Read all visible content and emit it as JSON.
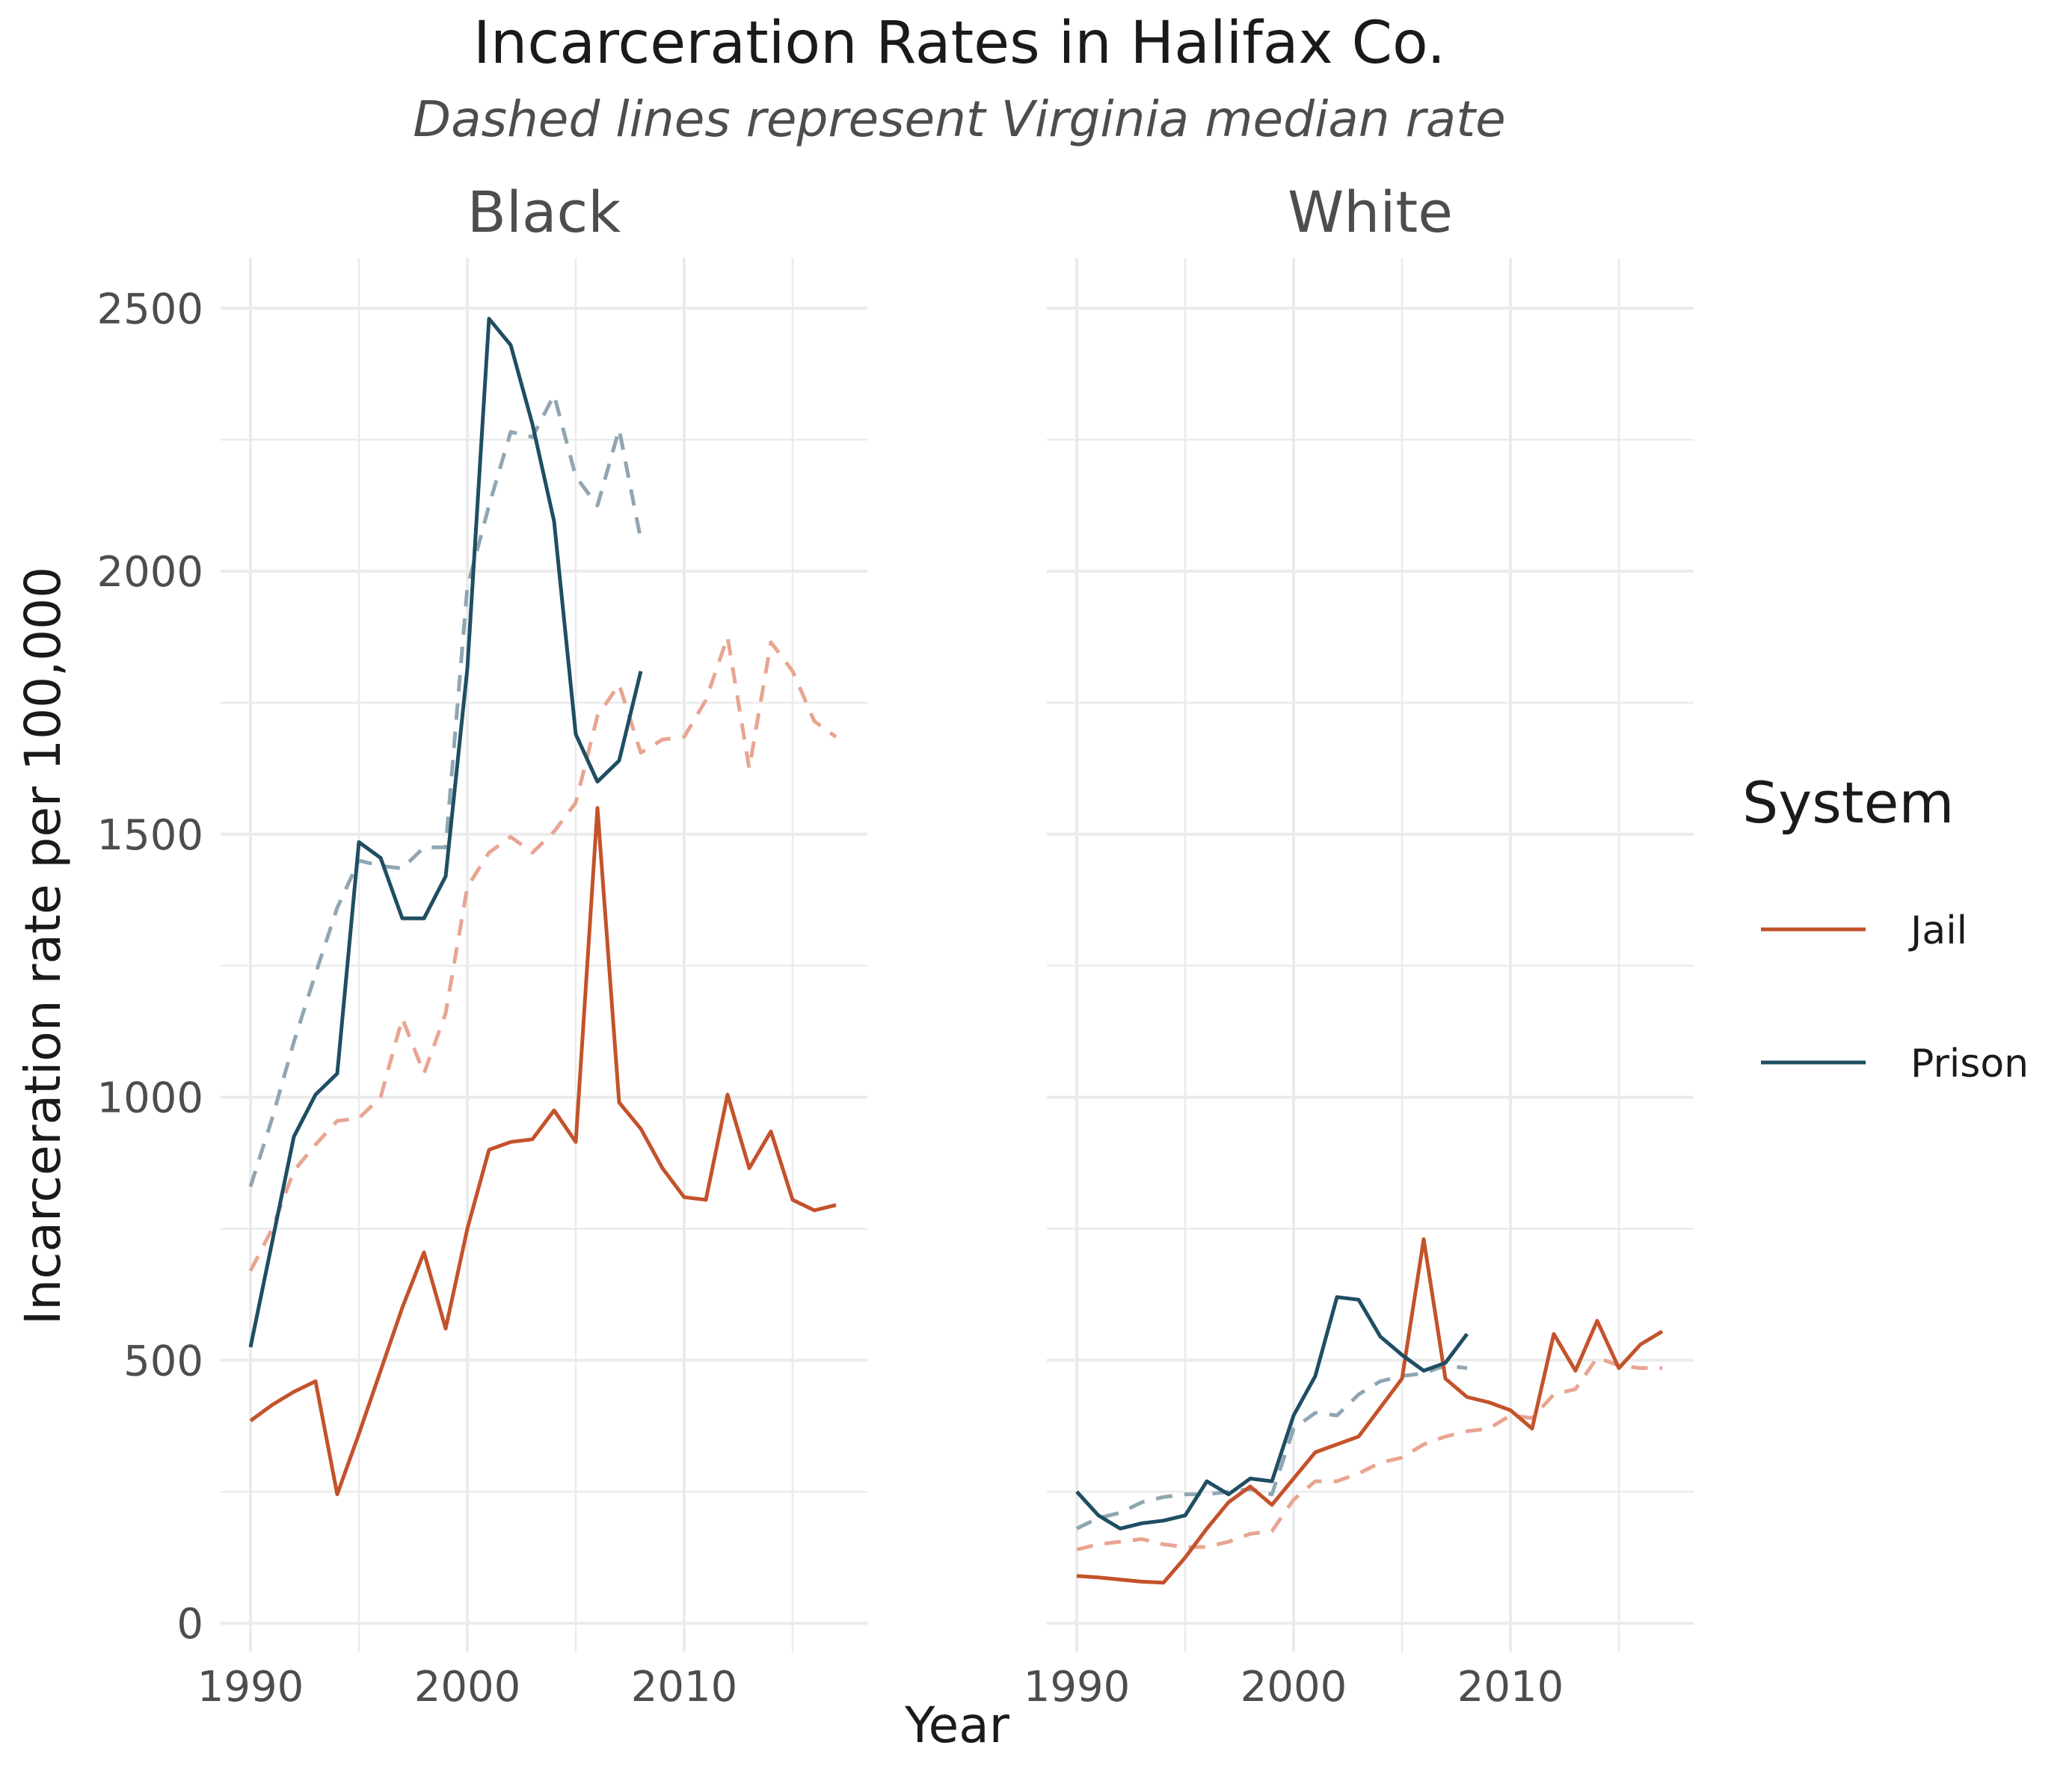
{
  "chart_data": {
    "type": "line",
    "title": "Incarceration Rates in Halifax Co.",
    "subtitle": "Dashed lines represent Virginia median rate",
    "xlabel": "Year",
    "ylabel": "Incarceration rate per 100,000",
    "xlim": [
      1990,
      2017
    ],
    "ylim": [
      0,
      2600
    ],
    "x_ticks": [
      "1990",
      "2000",
      "2010"
    ],
    "y_ticks": [
      "0",
      "500",
      "1000",
      "1500",
      "2000",
      "2500"
    ],
    "grid": true,
    "legend": {
      "title": "System",
      "position": "right",
      "entries": [
        {
          "label": "Jail",
          "color": "#c4522b"
        },
        {
          "label": "Prison",
          "color": "#1f4e63"
        }
      ]
    },
    "colors": {
      "jail": "#c4522b",
      "prison": "#1f4e63",
      "jail_median": "#e8a591",
      "prison_median": "#8fa6b2"
    },
    "facets": [
      {
        "label": "Black",
        "series": [
          {
            "system": "Jail",
            "style": "solid",
            "x": [
              1990,
              1991,
              1992,
              1993,
              1994,
              1995,
              1996,
              1997,
              1998,
              1999,
              2000,
              2001,
              2002,
              2003,
              2004,
              2005,
              2006,
              2007,
              2008,
              2009,
              2010,
              2011,
              2012,
              2013,
              2014,
              2015,
              2016,
              2017
            ],
            "y": [
              385,
              415,
              440,
              460,
              245,
              360,
              480,
              600,
              705,
              560,
              750,
              900,
              915,
              920,
              975,
              915,
              1550,
              990,
              940,
              865,
              810,
              805,
              1005,
              865,
              935,
              805,
              785,
              795
            ]
          },
          {
            "system": "Prison",
            "style": "solid",
            "x": [
              1990,
              1991,
              1992,
              1993,
              1994,
              1995,
              1996,
              1997,
              1998,
              1999,
              2000,
              2001,
              2002,
              2003,
              2004,
              2005,
              2006,
              2007,
              2008
            ],
            "y": [
              525,
              725,
              925,
              1005,
              1045,
              1485,
              1455,
              1340,
              1340,
              1420,
              1815,
              2480,
              2430,
              2280,
              2095,
              1690,
              1600,
              1640,
              1810
            ]
          },
          {
            "system": "Jail",
            "style": "dashed",
            "x": [
              1990,
              1991,
              1992,
              1993,
              1994,
              1995,
              1996,
              1997,
              1998,
              1999,
              2000,
              2001,
              2002,
              2003,
              2004,
              2005,
              2006,
              2007,
              2008,
              2009,
              2010,
              2011,
              2012,
              2013,
              2014,
              2015,
              2016,
              2017
            ],
            "y": [
              670,
              750,
              860,
              910,
              955,
              960,
              1000,
              1150,
              1045,
              1160,
              1400,
              1465,
              1495,
              1465,
              1505,
              1560,
              1725,
              1785,
              1655,
              1680,
              1685,
              1755,
              1875,
              1625,
              1865,
              1810,
              1715,
              1685
            ]
          },
          {
            "system": "Prison",
            "style": "dashed",
            "x": [
              1990,
              1991,
              1992,
              1993,
              1994,
              1995,
              1996,
              1997,
              1998,
              1999,
              2000,
              2001,
              2002,
              2003,
              2004,
              2005,
              2006,
              2007,
              2008
            ],
            "y": [
              830,
              960,
              1105,
              1235,
              1360,
              1450,
              1440,
              1435,
              1475,
              1475,
              1970,
              2125,
              2265,
              2255,
              2335,
              2180,
              2125,
              2270,
              2060
            ]
          }
        ]
      },
      {
        "label": "White",
        "series": [
          {
            "system": "Jail",
            "style": "solid",
            "x": [
              1990,
              1991,
              1992,
              1993,
              1994,
              1995,
              1996,
              1997,
              1998,
              1999,
              2000,
              2001,
              2002,
              2003,
              2004,
              2005,
              2006,
              2007,
              2008,
              2009,
              2010,
              2011,
              2012,
              2013,
              2014,
              2015,
              2016,
              2017
            ],
            "y": [
              90,
              87,
              83,
              79,
              77,
              125,
              180,
              230,
              260,
              225,
              275,
              325,
              340,
              355,
              410,
              465,
              730,
              465,
              430,
              420,
              405,
              370,
              550,
              480,
              575,
              485,
              530,
              555
            ]
          },
          {
            "system": "Prison",
            "style": "solid",
            "x": [
              1990,
              1991,
              1992,
              1993,
              1994,
              1995,
              1996,
              1997,
              1998,
              1999,
              2000,
              2001,
              2002,
              2003,
              2004,
              2005,
              2006,
              2007,
              2008
            ],
            "y": [
              250,
              205,
              180,
              190,
              195,
              205,
              270,
              245,
              275,
              270,
              395,
              470,
              620,
              615,
              545,
              510,
              480,
              495,
              550
            ]
          },
          {
            "system": "Jail",
            "style": "dashed",
            "x": [
              1990,
              1991,
              1992,
              1993,
              1994,
              1995,
              1996,
              1997,
              1998,
              1999,
              2000,
              2001,
              2002,
              2003,
              2004,
              2005,
              2006,
              2007,
              2008,
              2009,
              2010,
              2011,
              2012,
              2013,
              2014,
              2015,
              2016,
              2017
            ],
            "y": [
              140,
              150,
              155,
              160,
              150,
              145,
              145,
              155,
              170,
              175,
              235,
              270,
              270,
              285,
              305,
              315,
              340,
              355,
              365,
              370,
              395,
              390,
              435,
              445,
              505,
              490,
              485,
              485
            ]
          },
          {
            "system": "Prison",
            "style": "dashed",
            "x": [
              1990,
              1991,
              1992,
              1993,
              1994,
              1995,
              1996,
              1997,
              1998,
              1999,
              2000,
              2001,
              2002,
              2003,
              2004,
              2005,
              2006,
              2007,
              2008
            ],
            "y": [
              180,
              200,
              210,
              230,
              240,
              245,
              245,
              250,
              255,
              245,
              370,
              400,
              395,
              435,
              460,
              470,
              475,
              490,
              485
            ]
          }
        ]
      }
    ]
  }
}
